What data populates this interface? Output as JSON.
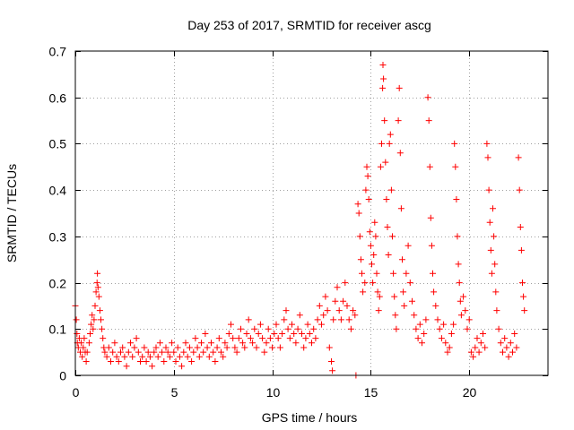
{
  "chart_data": {
    "type": "scatter",
    "title": "Day 253 of 2017, SRMTID for receiver ascg",
    "xlabel": "GPS time / hours",
    "ylabel": "SRMTID / TECUs",
    "xlim": [
      0,
      24
    ],
    "ylim": [
      0,
      0.7
    ],
    "xticks": [
      0,
      5,
      10,
      15,
      20
    ],
    "yticks": [
      0,
      0.1,
      0.2,
      0.3,
      0.4,
      0.5,
      0.6,
      0.7
    ],
    "grid": true,
    "marker": "+",
    "color": "#ff0000",
    "series": [
      {
        "name": "SRMTID",
        "points": [
          [
            0.0,
            0.15
          ],
          [
            0.05,
            0.12
          ],
          [
            0.08,
            0.09
          ],
          [
            0.1,
            0.07
          ],
          [
            0.15,
            0.06
          ],
          [
            0.2,
            0.08
          ],
          [
            0.25,
            0.05
          ],
          [
            0.3,
            0.07
          ],
          [
            0.35,
            0.04
          ],
          [
            0.4,
            0.06
          ],
          [
            0.45,
            0.08
          ],
          [
            0.5,
            0.05
          ],
          [
            0.55,
            0.03
          ],
          [
            0.6,
            0.05
          ],
          [
            0.7,
            0.07
          ],
          [
            0.75,
            0.09
          ],
          [
            0.8,
            0.11
          ],
          [
            0.85,
            0.13
          ],
          [
            0.9,
            0.1
          ],
          [
            0.95,
            0.12
          ],
          [
            1.0,
            0.15
          ],
          [
            1.05,
            0.18
          ],
          [
            1.1,
            0.2
          ],
          [
            1.12,
            0.22
          ],
          [
            1.15,
            0.19
          ],
          [
            1.2,
            0.17
          ],
          [
            1.25,
            0.14
          ],
          [
            1.3,
            0.12
          ],
          [
            1.35,
            0.1
          ],
          [
            1.4,
            0.08
          ],
          [
            1.45,
            0.06
          ],
          [
            1.5,
            0.05
          ],
          [
            1.6,
            0.04
          ],
          [
            1.7,
            0.06
          ],
          [
            1.8,
            0.03
          ],
          [
            1.9,
            0.05
          ],
          [
            2.0,
            0.07
          ],
          [
            2.1,
            0.04
          ],
          [
            2.2,
            0.03
          ],
          [
            2.3,
            0.05
          ],
          [
            2.4,
            0.06
          ],
          [
            2.5,
            0.04
          ],
          [
            2.6,
            0.02
          ],
          [
            2.7,
            0.05
          ],
          [
            2.8,
            0.07
          ],
          [
            2.9,
            0.04
          ],
          [
            3.0,
            0.06
          ],
          [
            3.1,
            0.08
          ],
          [
            3.2,
            0.05
          ],
          [
            3.3,
            0.03
          ],
          [
            3.4,
            0.04
          ],
          [
            3.5,
            0.06
          ],
          [
            3.6,
            0.03
          ],
          [
            3.7,
            0.05
          ],
          [
            3.8,
            0.04
          ],
          [
            3.9,
            0.02
          ],
          [
            4.0,
            0.05
          ],
          [
            4.1,
            0.06
          ],
          [
            4.2,
            0.04
          ],
          [
            4.3,
            0.07
          ],
          [
            4.4,
            0.05
          ],
          [
            4.5,
            0.03
          ],
          [
            4.6,
            0.06
          ],
          [
            4.7,
            0.05
          ],
          [
            4.8,
            0.04
          ],
          [
            4.9,
            0.07
          ],
          [
            5.0,
            0.05
          ],
          [
            5.1,
            0.03
          ],
          [
            5.2,
            0.06
          ],
          [
            5.3,
            0.04
          ],
          [
            5.4,
            0.02
          ],
          [
            5.5,
            0.05
          ],
          [
            5.6,
            0.07
          ],
          [
            5.7,
            0.04
          ],
          [
            5.8,
            0.06
          ],
          [
            5.9,
            0.03
          ],
          [
            6.0,
            0.05
          ],
          [
            6.1,
            0.08
          ],
          [
            6.2,
            0.06
          ],
          [
            6.3,
            0.04
          ],
          [
            6.4,
            0.07
          ],
          [
            6.5,
            0.05
          ],
          [
            6.6,
            0.09
          ],
          [
            6.7,
            0.06
          ],
          [
            6.8,
            0.04
          ],
          [
            6.9,
            0.07
          ],
          [
            7.0,
            0.05
          ],
          [
            7.1,
            0.03
          ],
          [
            7.2,
            0.06
          ],
          [
            7.3,
            0.08
          ],
          [
            7.4,
            0.05
          ],
          [
            7.5,
            0.04
          ],
          [
            7.6,
            0.07
          ],
          [
            7.7,
            0.06
          ],
          [
            7.8,
            0.09
          ],
          [
            7.9,
            0.11
          ],
          [
            8.0,
            0.08
          ],
          [
            8.1,
            0.06
          ],
          [
            8.2,
            0.05
          ],
          [
            8.3,
            0.08
          ],
          [
            8.4,
            0.1
          ],
          [
            8.5,
            0.07
          ],
          [
            8.6,
            0.06
          ],
          [
            8.7,
            0.09
          ],
          [
            8.8,
            0.12
          ],
          [
            8.9,
            0.08
          ],
          [
            9.0,
            0.07
          ],
          [
            9.1,
            0.1
          ],
          [
            9.2,
            0.06
          ],
          [
            9.3,
            0.09
          ],
          [
            9.4,
            0.11
          ],
          [
            9.5,
            0.08
          ],
          [
            9.6,
            0.05
          ],
          [
            9.7,
            0.07
          ],
          [
            9.8,
            0.1
          ],
          [
            9.9,
            0.08
          ],
          [
            10.0,
            0.06
          ],
          [
            10.1,
            0.09
          ],
          [
            10.2,
            0.11
          ],
          [
            10.3,
            0.08
          ],
          [
            10.4,
            0.06
          ],
          [
            10.5,
            0.09
          ],
          [
            10.6,
            0.12
          ],
          [
            10.7,
            0.14
          ],
          [
            10.8,
            0.1
          ],
          [
            10.9,
            0.08
          ],
          [
            11.0,
            0.11
          ],
          [
            11.1,
            0.09
          ],
          [
            11.2,
            0.07
          ],
          [
            11.3,
            0.1
          ],
          [
            11.4,
            0.13
          ],
          [
            11.5,
            0.09
          ],
          [
            11.6,
            0.06
          ],
          [
            11.7,
            0.08
          ],
          [
            11.8,
            0.11
          ],
          [
            11.9,
            0.09
          ],
          [
            12.0,
            0.07
          ],
          [
            12.1,
            0.1
          ],
          [
            12.2,
            0.08
          ],
          [
            12.3,
            0.12
          ],
          [
            12.4,
            0.15
          ],
          [
            12.5,
            0.11
          ],
          [
            12.6,
            0.13
          ],
          [
            12.7,
            0.17
          ],
          [
            12.8,
            0.14
          ],
          [
            12.9,
            0.06
          ],
          [
            13.0,
            0.03
          ],
          [
            13.05,
            0.01
          ],
          [
            13.1,
            0.12
          ],
          [
            13.2,
            0.16
          ],
          [
            13.3,
            0.19
          ],
          [
            13.4,
            0.14
          ],
          [
            13.5,
            0.12
          ],
          [
            13.6,
            0.16
          ],
          [
            13.7,
            0.2
          ],
          [
            13.8,
            0.15
          ],
          [
            13.9,
            0.12
          ],
          [
            14.0,
            0.1
          ],
          [
            14.1,
            0.14
          ],
          [
            14.2,
            0.13
          ],
          [
            14.25,
            0.0
          ],
          [
            14.35,
            0.37
          ],
          [
            14.4,
            0.35
          ],
          [
            14.45,
            0.3
          ],
          [
            14.5,
            0.25
          ],
          [
            14.55,
            0.22
          ],
          [
            14.6,
            0.18
          ],
          [
            14.7,
            0.2
          ],
          [
            14.75,
            0.4
          ],
          [
            14.8,
            0.45
          ],
          [
            14.85,
            0.43
          ],
          [
            14.9,
            0.38
          ],
          [
            14.95,
            0.31
          ],
          [
            15.0,
            0.28
          ],
          [
            15.05,
            0.24
          ],
          [
            15.1,
            0.2
          ],
          [
            15.15,
            0.26
          ],
          [
            15.2,
            0.33
          ],
          [
            15.25,
            0.3
          ],
          [
            15.3,
            0.22
          ],
          [
            15.35,
            0.18
          ],
          [
            15.4,
            0.14
          ],
          [
            15.45,
            0.17
          ],
          [
            15.5,
            0.45
          ],
          [
            15.55,
            0.5
          ],
          [
            15.6,
            0.62
          ],
          [
            15.62,
            0.67
          ],
          [
            15.65,
            0.64
          ],
          [
            15.7,
            0.55
          ],
          [
            15.75,
            0.46
          ],
          [
            15.8,
            0.38
          ],
          [
            15.85,
            0.32
          ],
          [
            15.9,
            0.26
          ],
          [
            15.95,
            0.5
          ],
          [
            16.0,
            0.52
          ],
          [
            16.05,
            0.4
          ],
          [
            16.1,
            0.3
          ],
          [
            16.15,
            0.22
          ],
          [
            16.2,
            0.17
          ],
          [
            16.25,
            0.13
          ],
          [
            16.3,
            0.1
          ],
          [
            16.4,
            0.55
          ],
          [
            16.45,
            0.62
          ],
          [
            16.5,
            0.48
          ],
          [
            16.55,
            0.36
          ],
          [
            16.6,
            0.25
          ],
          [
            16.65,
            0.18
          ],
          [
            16.7,
            0.15
          ],
          [
            16.8,
            0.22
          ],
          [
            16.9,
            0.28
          ],
          [
            17.0,
            0.2
          ],
          [
            17.1,
            0.16
          ],
          [
            17.2,
            0.13
          ],
          [
            17.3,
            0.1
          ],
          [
            17.4,
            0.08
          ],
          [
            17.5,
            0.11
          ],
          [
            17.6,
            0.07
          ],
          [
            17.7,
            0.09
          ],
          [
            17.8,
            0.12
          ],
          [
            17.9,
            0.6
          ],
          [
            17.95,
            0.55
          ],
          [
            18.0,
            0.45
          ],
          [
            18.05,
            0.34
          ],
          [
            18.1,
            0.28
          ],
          [
            18.15,
            0.22
          ],
          [
            18.2,
            0.18
          ],
          [
            18.3,
            0.15
          ],
          [
            18.4,
            0.12
          ],
          [
            18.5,
            0.1
          ],
          [
            18.6,
            0.08
          ],
          [
            18.7,
            0.11
          ],
          [
            18.8,
            0.07
          ],
          [
            18.9,
            0.05
          ],
          [
            19.0,
            0.06
          ],
          [
            19.1,
            0.09
          ],
          [
            19.2,
            0.11
          ],
          [
            19.25,
            0.5
          ],
          [
            19.3,
            0.45
          ],
          [
            19.35,
            0.38
          ],
          [
            19.4,
            0.3
          ],
          [
            19.45,
            0.24
          ],
          [
            19.5,
            0.2
          ],
          [
            19.55,
            0.16
          ],
          [
            19.6,
            0.13
          ],
          [
            19.7,
            0.17
          ],
          [
            19.8,
            0.14
          ],
          [
            19.9,
            0.1
          ],
          [
            20.0,
            0.12
          ],
          [
            20.1,
            0.05
          ],
          [
            20.2,
            0.04
          ],
          [
            20.3,
            0.06
          ],
          [
            20.4,
            0.08
          ],
          [
            20.5,
            0.05
          ],
          [
            20.6,
            0.07
          ],
          [
            20.7,
            0.09
          ],
          [
            20.8,
            0.06
          ],
          [
            20.9,
            0.5
          ],
          [
            20.95,
            0.47
          ],
          [
            21.0,
            0.4
          ],
          [
            21.05,
            0.33
          ],
          [
            21.1,
            0.27
          ],
          [
            21.15,
            0.22
          ],
          [
            21.2,
            0.36
          ],
          [
            21.25,
            0.3
          ],
          [
            21.3,
            0.24
          ],
          [
            21.35,
            0.18
          ],
          [
            21.4,
            0.14
          ],
          [
            21.5,
            0.1
          ],
          [
            21.6,
            0.07
          ],
          [
            21.7,
            0.05
          ],
          [
            21.8,
            0.08
          ],
          [
            21.9,
            0.06
          ],
          [
            22.0,
            0.04
          ],
          [
            22.1,
            0.07
          ],
          [
            22.2,
            0.05
          ],
          [
            22.3,
            0.09
          ],
          [
            22.4,
            0.06
          ],
          [
            22.5,
            0.47
          ],
          [
            22.55,
            0.4
          ],
          [
            22.6,
            0.32
          ],
          [
            22.65,
            0.27
          ],
          [
            22.7,
            0.2
          ],
          [
            22.75,
            0.17
          ],
          [
            22.8,
            0.14
          ]
        ]
      }
    ]
  }
}
